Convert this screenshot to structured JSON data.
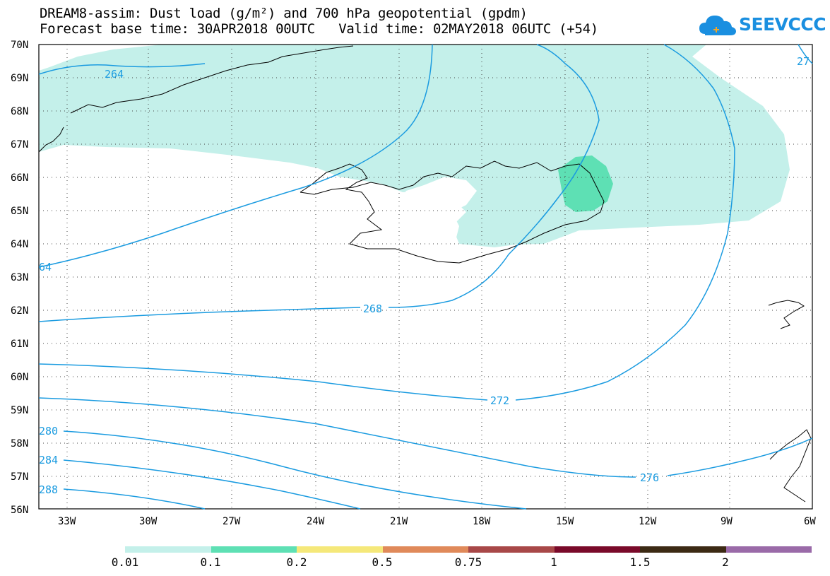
{
  "header": {
    "line1": "DREAM8-assim: Dust load (g/m²) and 700 hPa geopotential (gpdm)",
    "line2": "Forecast base time: 30APR2018 00UTC   Valid time: 02MAY2018 06UTC (+54)"
  },
  "logo": {
    "text": "SEEVCCC",
    "icon": "cloud-icon",
    "color": "#1a8fe0"
  },
  "axes": {
    "lat_labels": [
      "70N",
      "69N",
      "68N",
      "67N",
      "66N",
      "65N",
      "64N",
      "63N",
      "62N",
      "61N",
      "60N",
      "59N",
      "58N",
      "57N",
      "56N"
    ],
    "lon_labels": [
      "33W",
      "30W",
      "27W",
      "24W",
      "21W",
      "18W",
      "15W",
      "12W",
      "9W",
      "6W"
    ]
  },
  "contour_labels": {
    "c264_top": "264",
    "c264_left": "64",
    "c268": "268",
    "c272": "272",
    "c276": "276",
    "c280": "280",
    "c284": "284",
    "c288": "288",
    "c27_corner": "27"
  },
  "colorbar": {
    "colors": [
      "#c4f0ea",
      "#5ee0b4",
      "#f5e87a",
      "#e08a5a",
      "#a84848",
      "#7a0a2a",
      "#3c2a14",
      "#9a6aa8"
    ],
    "labels": [
      "0.01",
      "0.1",
      "0.2",
      "0.5",
      "0.75",
      "1",
      "1.5",
      "2"
    ]
  },
  "styles": {
    "contour_color": "#1a9be0",
    "dust_low_color": "#c4f0ea",
    "dust_mid_color": "#5ee0b4"
  }
}
